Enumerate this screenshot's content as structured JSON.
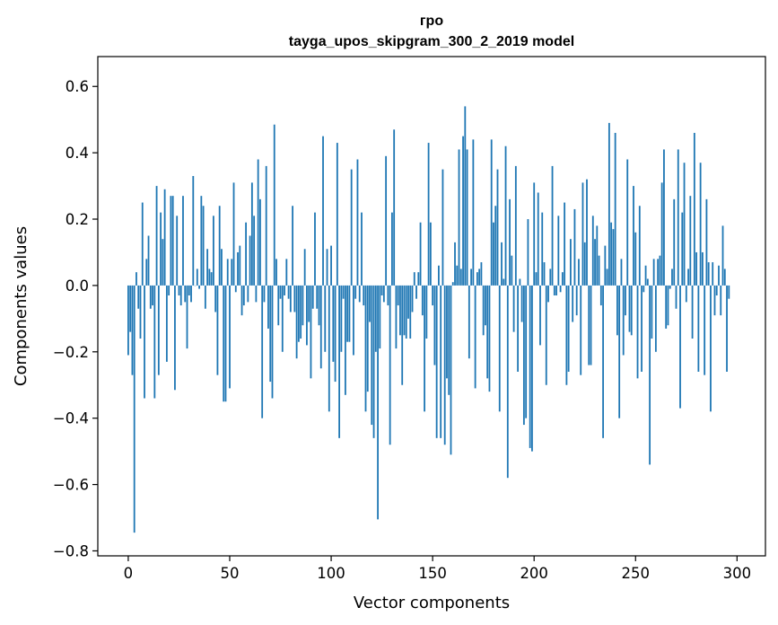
{
  "chart_data": {
    "type": "bar",
    "title": "гро",
    "subtitle": "tayga_upos_skipgram_300_2_2019 model",
    "xlabel": "Vector components",
    "ylabel": "Components values",
    "xlim": [
      -15,
      314
    ],
    "ylim": [
      -0.815,
      0.69
    ],
    "xticks": [
      0,
      50,
      100,
      150,
      200,
      250,
      300
    ],
    "xtick_labels": [
      "0",
      "50",
      "100",
      "150",
      "200",
      "250",
      "300"
    ],
    "yticks": [
      -0.8,
      -0.6,
      -0.4,
      -0.2,
      0.0,
      0.2,
      0.4,
      0.6
    ],
    "ytick_labels": [
      "−0.8",
      "−0.6",
      "−0.4",
      "−0.2",
      "0.0",
      "0.2",
      "0.4",
      "0.6"
    ],
    "bar_color": "#1f77b4",
    "grid": false,
    "legend": "none",
    "values": [
      -0.21,
      -0.14,
      -0.27,
      -0.745,
      0.04,
      -0.07,
      -0.16,
      0.25,
      -0.34,
      0.08,
      0.15,
      -0.07,
      -0.06,
      -0.34,
      0.3,
      -0.27,
      0.22,
      0.14,
      0.29,
      -0.23,
      -0.03,
      0.27,
      0.27,
      -0.315,
      0.21,
      -0.03,
      -0.06,
      0.27,
      -0.05,
      -0.19,
      -0.03,
      -0.05,
      0.33,
      0.0,
      0.05,
      -0.01,
      0.27,
      0.24,
      -0.07,
      0.11,
      0.05,
      0.04,
      0.21,
      -0.08,
      -0.27,
      0.24,
      0.11,
      -0.35,
      -0.35,
      0.08,
      -0.31,
      0.08,
      0.31,
      -0.02,
      0.1,
      0.12,
      -0.09,
      -0.06,
      0.19,
      -0.05,
      0.15,
      0.31,
      0.21,
      -0.05,
      0.38,
      0.26,
      -0.4,
      -0.05,
      0.36,
      -0.13,
      -0.29,
      -0.34,
      0.485,
      0.08,
      -0.12,
      -0.04,
      -0.2,
      -0.03,
      0.08,
      -0.04,
      -0.08,
      0.24,
      -0.08,
      -0.22,
      -0.17,
      -0.16,
      -0.12,
      0.11,
      -0.18,
      -0.11,
      -0.28,
      -0.07,
      0.22,
      -0.07,
      -0.12,
      -0.25,
      0.45,
      -0.2,
      0.11,
      -0.38,
      0.12,
      -0.23,
      -0.29,
      0.43,
      -0.46,
      -0.2,
      -0.04,
      -0.33,
      -0.17,
      -0.17,
      0.35,
      -0.21,
      -0.04,
      0.38,
      -0.05,
      0.22,
      -0.06,
      -0.38,
      -0.32,
      -0.11,
      -0.42,
      -0.46,
      -0.2,
      -0.705,
      -0.19,
      -0.03,
      -0.05,
      0.39,
      -0.06,
      -0.48,
      0.22,
      0.47,
      -0.19,
      -0.06,
      -0.15,
      -0.3,
      -0.15,
      -0.16,
      -0.1,
      -0.16,
      -0.08,
      0.04,
      -0.04,
      0.04,
      0.19,
      -0.09,
      -0.38,
      -0.16,
      0.43,
      0.19,
      -0.06,
      -0.24,
      -0.46,
      0.06,
      -0.46,
      0.35,
      -0.48,
      -0.28,
      -0.33,
      -0.51,
      0.01,
      0.13,
      0.06,
      0.41,
      0.05,
      0.45,
      0.54,
      0.41,
      -0.22,
      0.05,
      0.44,
      -0.31,
      0.04,
      0.05,
      0.07,
      -0.15,
      -0.12,
      -0.28,
      -0.32,
      0.44,
      0.19,
      0.24,
      0.35,
      -0.38,
      0.13,
      0.02,
      0.42,
      -0.58,
      0.26,
      0.09,
      -0.14,
      0.36,
      -0.26,
      0.02,
      -0.11,
      -0.42,
      -0.4,
      0.2,
      -0.49,
      -0.5,
      0.31,
      0.04,
      0.28,
      -0.18,
      0.22,
      0.07,
      -0.3,
      -0.05,
      0.05,
      0.36,
      -0.03,
      -0.03,
      0.21,
      -0.02,
      0.04,
      0.25,
      -0.3,
      -0.26,
      0.14,
      -0.11,
      0.23,
      -0.09,
      0.08,
      -0.27,
      0.31,
      0.13,
      0.32,
      -0.24,
      -0.24,
      0.21,
      0.14,
      0.18,
      0.09,
      -0.06,
      -0.46,
      0.12,
      0.05,
      0.49,
      0.19,
      0.17,
      0.46,
      -0.15,
      -0.4,
      0.08,
      -0.21,
      -0.09,
      0.38,
      -0.14,
      -0.15,
      0.3,
      0.16,
      -0.28,
      0.24,
      -0.26,
      -0.02,
      0.06,
      0.02,
      -0.54,
      -0.16,
      0.08,
      -0.2,
      0.08,
      0.09,
      0.31,
      0.41,
      -0.13,
      -0.12,
      -0.01,
      0.05,
      0.26,
      -0.07,
      0.41,
      -0.37,
      0.22,
      0.37,
      -0.05,
      0.05,
      0.27,
      -0.16,
      0.46,
      0.1,
      -0.26,
      0.37,
      0.1,
      -0.27,
      0.26,
      0.07,
      -0.38,
      0.07,
      -0.09,
      -0.03,
      0.06,
      -0.09,
      0.18,
      0.05,
      -0.26,
      -0.04
    ]
  }
}
